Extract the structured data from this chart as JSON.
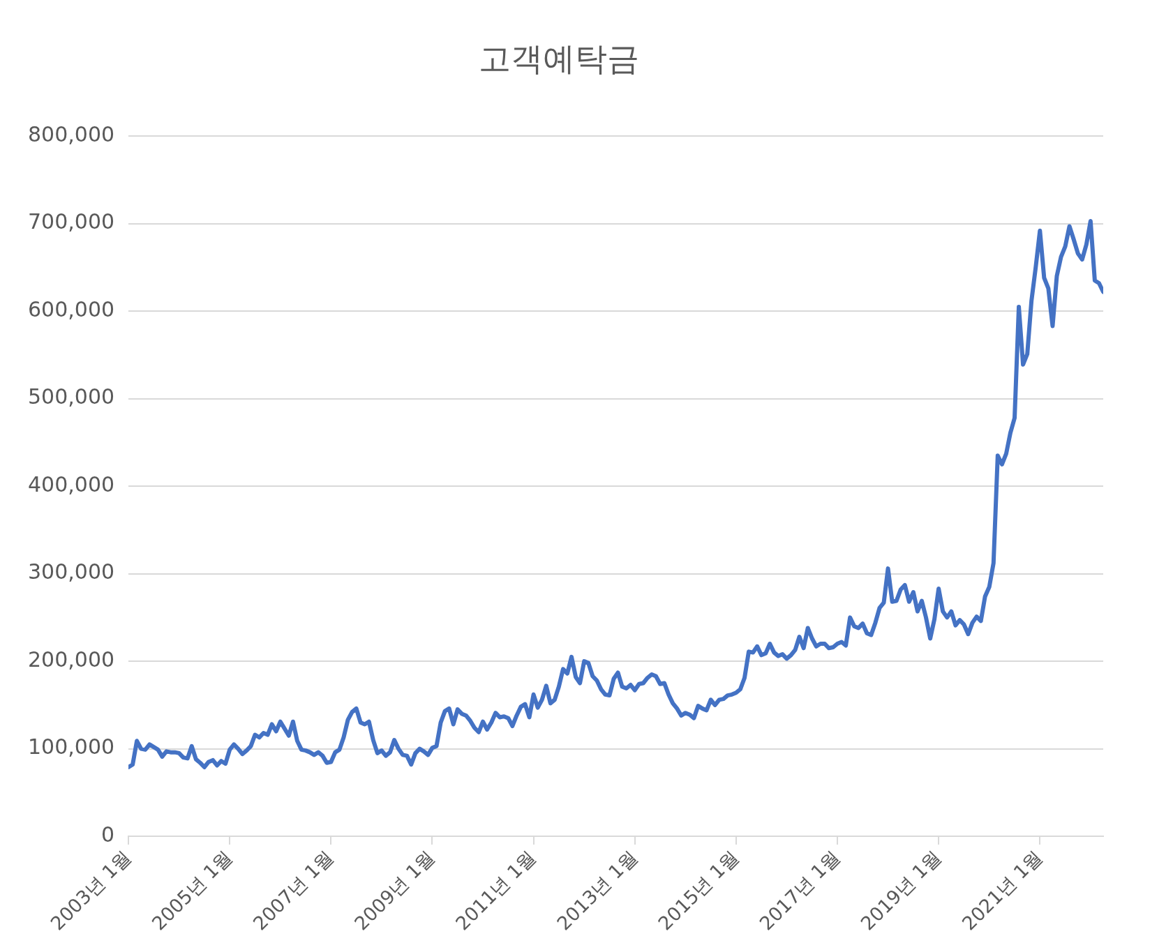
{
  "chart_data": {
    "type": "line",
    "title": "고객예탁금",
    "color": "#4472c4",
    "grid": "y",
    "legend": false,
    "marker": "none",
    "line_style": "solid",
    "xlim": [
      "2003-01",
      "2022-04"
    ],
    "xticks": [
      {
        "value": "2003-01",
        "label": "2003년 1월"
      },
      {
        "value": "2005-01",
        "label": "2005년 1월"
      },
      {
        "value": "2007-01",
        "label": "2007년 1월"
      },
      {
        "value": "2009-01",
        "label": "2009년 1월"
      },
      {
        "value": "2011-01",
        "label": "2011년 1월"
      },
      {
        "value": "2013-01",
        "label": "2013년 1월"
      },
      {
        "value": "2015-01",
        "label": "2015년 1월"
      },
      {
        "value": "2017-01",
        "label": "2017년 1월"
      },
      {
        "value": "2019-01",
        "label": "2019년 1월"
      },
      {
        "value": "2021-01",
        "label": "2021년 1월"
      }
    ],
    "ylim": [
      0,
      800000
    ],
    "yticks": [
      0,
      {
        "value": 100000,
        "label": "100,000"
      },
      {
        "value": 200000,
        "label": "200,000"
      },
      {
        "value": 300000,
        "label": "300,000"
      },
      {
        "value": 400000,
        "label": "400,000"
      },
      {
        "value": 500000,
        "label": "500,000"
      },
      {
        "value": 600000,
        "label": "600,000"
      },
      {
        "value": 700000,
        "label": "700,000"
      },
      {
        "value": 800000,
        "label": "800,000"
      }
    ],
    "x": [
      "2003-01",
      "2003-02",
      "2003-03",
      "2003-04",
      "2003-05",
      "2003-06",
      "2003-07",
      "2003-08",
      "2003-09",
      "2003-10",
      "2003-11",
      "2003-12",
      "2004-01",
      "2004-02",
      "2004-03",
      "2004-04",
      "2004-05",
      "2004-06",
      "2004-07",
      "2004-08",
      "2004-09",
      "2004-10",
      "2004-11",
      "2004-12",
      "2005-01",
      "2005-02",
      "2005-03",
      "2005-04",
      "2005-05",
      "2005-06",
      "2005-07",
      "2005-08",
      "2005-09",
      "2005-10",
      "2005-11",
      "2005-12",
      "2006-01",
      "2006-02",
      "2006-03",
      "2006-04",
      "2006-05",
      "2006-06",
      "2006-07",
      "2006-08",
      "2006-09",
      "2006-10",
      "2006-11",
      "2006-12",
      "2007-01",
      "2007-02",
      "2007-03",
      "2007-04",
      "2007-05",
      "2007-06",
      "2007-07",
      "2007-08",
      "2007-09",
      "2007-10",
      "2007-11",
      "2007-12",
      "2008-01",
      "2008-02",
      "2008-03",
      "2008-04",
      "2008-05",
      "2008-06",
      "2008-07",
      "2008-08",
      "2008-09",
      "2008-10",
      "2008-11",
      "2008-12",
      "2009-01",
      "2009-02",
      "2009-03",
      "2009-04",
      "2009-05",
      "2009-06",
      "2009-07",
      "2009-08",
      "2009-09",
      "2009-10",
      "2009-11",
      "2009-12",
      "2010-01",
      "2010-02",
      "2010-03",
      "2010-04",
      "2010-05",
      "2010-06",
      "2010-07",
      "2010-08",
      "2010-09",
      "2010-10",
      "2010-11",
      "2010-12",
      "2011-01",
      "2011-02",
      "2011-03",
      "2011-04",
      "2011-05",
      "2011-06",
      "2011-07",
      "2011-08",
      "2011-09",
      "2011-10",
      "2011-11",
      "2011-12",
      "2012-01",
      "2012-02",
      "2012-03",
      "2012-04",
      "2012-05",
      "2012-06",
      "2012-07",
      "2012-08",
      "2012-09",
      "2012-10",
      "2012-11",
      "2012-12",
      "2013-01",
      "2013-02",
      "2013-03",
      "2013-04",
      "2013-05",
      "2013-06",
      "2013-07",
      "2013-08",
      "2013-09",
      "2013-10",
      "2013-11",
      "2013-12",
      "2014-01",
      "2014-02",
      "2014-03",
      "2014-04",
      "2014-05",
      "2014-06",
      "2014-07",
      "2014-08",
      "2014-09",
      "2014-10",
      "2014-11",
      "2014-12",
      "2015-01",
      "2015-02",
      "2015-03",
      "2015-04",
      "2015-05",
      "2015-06",
      "2015-07",
      "2015-08",
      "2015-09",
      "2015-10",
      "2015-11",
      "2015-12",
      "2016-01",
      "2016-02",
      "2016-03",
      "2016-04",
      "2016-05",
      "2016-06",
      "2016-07",
      "2016-08",
      "2016-09",
      "2016-10",
      "2016-11",
      "2016-12",
      "2017-01",
      "2017-02",
      "2017-03",
      "2017-04",
      "2017-05",
      "2017-06",
      "2017-07",
      "2017-08",
      "2017-09",
      "2017-10",
      "2017-11",
      "2017-12",
      "2018-01",
      "2018-02",
      "2018-03",
      "2018-04",
      "2018-05",
      "2018-06",
      "2018-07",
      "2018-08",
      "2018-09",
      "2018-10",
      "2018-11",
      "2018-12",
      "2019-01",
      "2019-02",
      "2019-03",
      "2019-04",
      "2019-05",
      "2019-06",
      "2019-07",
      "2019-08",
      "2019-09",
      "2019-10",
      "2019-11",
      "2019-12",
      "2020-01",
      "2020-02",
      "2020-03",
      "2020-04",
      "2020-05",
      "2020-06",
      "2020-07",
      "2020-08",
      "2020-09",
      "2020-10",
      "2020-11",
      "2020-12",
      "2021-01",
      "2021-02",
      "2021-03",
      "2021-04",
      "2021-05",
      "2021-06",
      "2021-07",
      "2021-08",
      "2021-09",
      "2021-10",
      "2021-11",
      "2021-12",
      "2022-01",
      "2022-02",
      "2022-03",
      "2022-04"
    ],
    "values": [
      79000,
      82000,
      109000,
      100000,
      99000,
      105000,
      102000,
      99000,
      91000,
      97000,
      96000,
      96000,
      95000,
      90000,
      89000,
      103000,
      88000,
      84000,
      79000,
      85000,
      87000,
      81000,
      86000,
      83000,
      99000,
      105000,
      100000,
      94000,
      98000,
      103000,
      116000,
      113000,
      118000,
      116000,
      128000,
      120000,
      131000,
      123000,
      115000,
      131000,
      109000,
      99000,
      98000,
      96000,
      93000,
      96000,
      92000,
      84000,
      85000,
      96000,
      99000,
      113000,
      133000,
      142000,
      146000,
      130000,
      128000,
      131000,
      110000,
      95000,
      98000,
      92000,
      96000,
      110000,
      100000,
      93000,
      92000,
      82000,
      95000,
      100000,
      97000,
      93000,
      101000,
      103000,
      130000,
      143000,
      146000,
      128000,
      145000,
      140000,
      138000,
      132000,
      124000,
      119000,
      131000,
      122000,
      130000,
      141000,
      136000,
      137000,
      135000,
      126000,
      138000,
      148000,
      151000,
      136000,
      162000,
      147000,
      156000,
      172000,
      152000,
      156000,
      171000,
      191000,
      186000,
      205000,
      182000,
      175000,
      200000,
      198000,
      183000,
      178000,
      168000,
      162000,
      161000,
      180000,
      187000,
      171000,
      169000,
      173000,
      167000,
      174000,
      175000,
      181000,
      185000,
      183000,
      174000,
      175000,
      162000,
      152000,
      146000,
      138000,
      141000,
      139000,
      135000,
      149000,
      146000,
      144000,
      156000,
      150000,
      156000,
      157000,
      161000,
      162000,
      164000,
      168000,
      181000,
      211000,
      210000,
      217000,
      207000,
      209000,
      220000,
      210000,
      206000,
      208000,
      203000,
      207000,
      213000,
      228000,
      215000,
      238000,
      226000,
      217000,
      220000,
      220000,
      215000,
      216000,
      220000,
      222000,
      218000,
      250000,
      240000,
      238000,
      243000,
      232000,
      230000,
      244000,
      261000,
      267000,
      306000,
      268000,
      269000,
      282000,
      287000,
      268000,
      279000,
      257000,
      269000,
      250000,
      226000,
      248000,
      283000,
      257000,
      250000,
      257000,
      241000,
      247000,
      242000,
      231000,
      244000,
      251000,
      246000,
      274000,
      285000,
      312000,
      435000,
      425000,
      437000,
      461000,
      478000,
      605000,
      539000,
      551000,
      612000,
      650000,
      692000,
      638000,
      626000,
      583000,
      640000,
      662000,
      674000,
      697000,
      682000,
      666000,
      659000,
      676000,
      703000,
      635000,
      632000,
      622000
    ]
  }
}
